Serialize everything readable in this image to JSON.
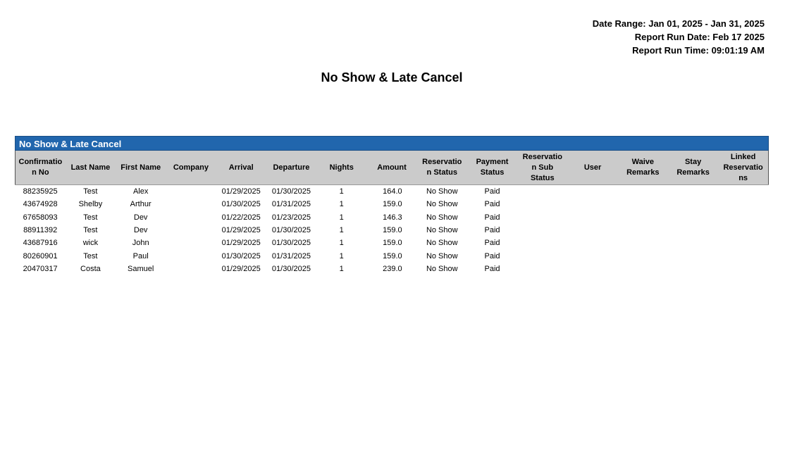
{
  "meta": {
    "date_range": "Date Range: Jan 01, 2025 - Jan 31, 2025",
    "run_date": "Report Run Date: Feb 17 2025",
    "run_time": "Report Run Time: 09:01:19 AM"
  },
  "title": "No Show & Late Cancel",
  "section": {
    "title": "No Show & Late Cancel",
    "color": "#2166ad"
  },
  "columns": [
    "Confirmatio\nn No",
    "Last Name",
    "First Name",
    "Company",
    "Arrival",
    "Departure",
    "Nights",
    "Amount",
    "Reservatio\nn Status",
    "Payment\nStatus",
    "Reservatio\nn Sub\nStatus",
    "User",
    "Waive\nRemarks",
    "Stay\nRemarks",
    "Linked\nReservatio\nns"
  ],
  "rows": [
    [
      "88235925",
      "Test",
      "Alex",
      "",
      "01/29/2025",
      "01/30/2025",
      "1",
      "164.0",
      "No Show",
      "Paid",
      "",
      "",
      "",
      "",
      ""
    ],
    [
      "43674928",
      "Shelby",
      "Arthur",
      "",
      "01/30/2025",
      "01/31/2025",
      "1",
      "159.0",
      "No Show",
      "Paid",
      "",
      "",
      "",
      "",
      ""
    ],
    [
      "67658093",
      "Test",
      "Dev",
      "",
      "01/22/2025",
      "01/23/2025",
      "1",
      "146.3",
      "No Show",
      "Paid",
      "",
      "",
      "",
      "",
      ""
    ],
    [
      "88911392",
      "Test",
      "Dev",
      "",
      "01/29/2025",
      "01/30/2025",
      "1",
      "159.0",
      "No Show",
      "Paid",
      "",
      "",
      "",
      "",
      ""
    ],
    [
      "43687916",
      "wick",
      "John",
      "",
      "01/29/2025",
      "01/30/2025",
      "1",
      "159.0",
      "No Show",
      "Paid",
      "",
      "",
      "",
      "",
      ""
    ],
    [
      "80260901",
      "Test",
      "Paul",
      "",
      "01/30/2025",
      "01/31/2025",
      "1",
      "159.0",
      "No Show",
      "Paid",
      "",
      "",
      "",
      "",
      ""
    ],
    [
      "20470317",
      "Costa",
      "Samuel",
      "",
      "01/29/2025",
      "01/30/2025",
      "1",
      "239.0",
      "No Show",
      "Paid",
      "",
      "",
      "",
      "",
      ""
    ]
  ]
}
